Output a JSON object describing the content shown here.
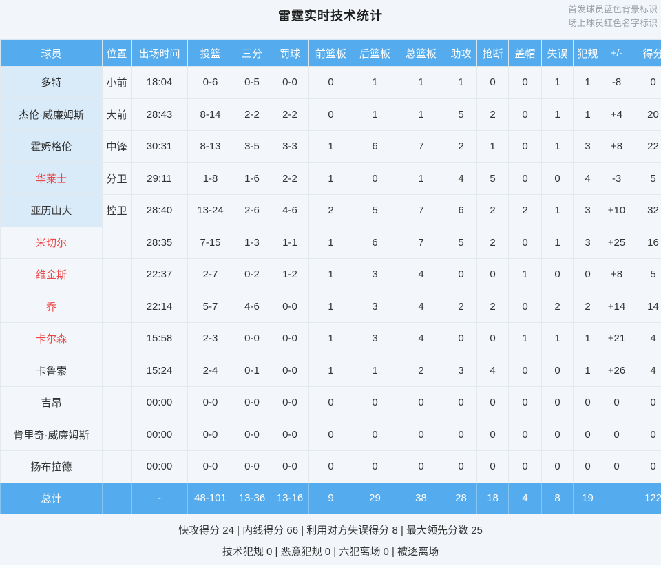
{
  "page": {
    "title": "雷霆实时技术统计",
    "legend_line1": "首发球员蓝色背景标识",
    "legend_line2": "场上球员红色名字标识"
  },
  "colors": {
    "accent_blue": "#54abed",
    "starter_bg": "#d9eaf8",
    "oncourt_red": "#ee4646"
  },
  "table": {
    "columns": [
      "球员",
      "位置",
      "出场时间",
      "投篮",
      "三分",
      "罚球",
      "前篮板",
      "后篮板",
      "总篮板",
      "助攻",
      "抢断",
      "盖帽",
      "失误",
      "犯规",
      "+/-",
      "得分"
    ],
    "rows": [
      {
        "name": "多特",
        "starter": true,
        "red": false,
        "cells": [
          "小前",
          "18:04",
          "0-6",
          "0-5",
          "0-0",
          "0",
          "1",
          "1",
          "1",
          "0",
          "0",
          "1",
          "1",
          "-8",
          "0"
        ]
      },
      {
        "name": "杰伦·威廉姆斯",
        "starter": true,
        "red": false,
        "cells": [
          "大前",
          "28:43",
          "8-14",
          "2-2",
          "2-2",
          "0",
          "1",
          "1",
          "5",
          "2",
          "0",
          "1",
          "1",
          "+4",
          "20"
        ]
      },
      {
        "name": "霍姆格伦",
        "starter": true,
        "red": false,
        "cells": [
          "中锋",
          "30:31",
          "8-13",
          "3-5",
          "3-3",
          "1",
          "6",
          "7",
          "2",
          "1",
          "0",
          "1",
          "3",
          "+8",
          "22"
        ]
      },
      {
        "name": "华莱士",
        "starter": true,
        "red": true,
        "cells": [
          "分卫",
          "29:11",
          "1-8",
          "1-6",
          "2-2",
          "1",
          "0",
          "1",
          "4",
          "5",
          "0",
          "0",
          "4",
          "-3",
          "5"
        ]
      },
      {
        "name": "亚历山大",
        "starter": true,
        "red": false,
        "cells": [
          "控卫",
          "28:40",
          "13-24",
          "2-6",
          "4-6",
          "2",
          "5",
          "7",
          "6",
          "2",
          "2",
          "1",
          "3",
          "+10",
          "32"
        ]
      },
      {
        "name": "米切尔",
        "starter": false,
        "red": true,
        "cells": [
          "",
          "28:35",
          "7-15",
          "1-3",
          "1-1",
          "1",
          "6",
          "7",
          "5",
          "2",
          "0",
          "1",
          "3",
          "+25",
          "16"
        ]
      },
      {
        "name": "维金斯",
        "starter": false,
        "red": true,
        "cells": [
          "",
          "22:37",
          "2-7",
          "0-2",
          "1-2",
          "1",
          "3",
          "4",
          "0",
          "0",
          "1",
          "0",
          "0",
          "+8",
          "5"
        ]
      },
      {
        "name": "乔",
        "starter": false,
        "red": true,
        "cells": [
          "",
          "22:14",
          "5-7",
          "4-6",
          "0-0",
          "1",
          "3",
          "4",
          "2",
          "2",
          "0",
          "2",
          "2",
          "+14",
          "14"
        ]
      },
      {
        "name": "卡尔森",
        "starter": false,
        "red": true,
        "cells": [
          "",
          "15:58",
          "2-3",
          "0-0",
          "0-0",
          "1",
          "3",
          "4",
          "0",
          "0",
          "1",
          "1",
          "1",
          "+21",
          "4"
        ]
      },
      {
        "name": "卡鲁索",
        "starter": false,
        "red": false,
        "cells": [
          "",
          "15:24",
          "2-4",
          "0-1",
          "0-0",
          "1",
          "1",
          "2",
          "3",
          "4",
          "0",
          "0",
          "1",
          "+26",
          "4"
        ]
      },
      {
        "name": "吉昂",
        "starter": false,
        "red": false,
        "cells": [
          "",
          "00:00",
          "0-0",
          "0-0",
          "0-0",
          "0",
          "0",
          "0",
          "0",
          "0",
          "0",
          "0",
          "0",
          "0",
          "0"
        ]
      },
      {
        "name": "肯里奇·威廉姆斯",
        "starter": false,
        "red": false,
        "cells": [
          "",
          "00:00",
          "0-0",
          "0-0",
          "0-0",
          "0",
          "0",
          "0",
          "0",
          "0",
          "0",
          "0",
          "0",
          "0",
          "0"
        ]
      },
      {
        "name": "扬布拉德",
        "starter": false,
        "red": false,
        "cells": [
          "",
          "00:00",
          "0-0",
          "0-0",
          "0-0",
          "0",
          "0",
          "0",
          "0",
          "0",
          "0",
          "0",
          "0",
          "0",
          "0"
        ]
      }
    ],
    "total": {
      "name": "总计",
      "cells": [
        "",
        "-",
        "48-101",
        "13-36",
        "13-16",
        "9",
        "29",
        "38",
        "28",
        "18",
        "4",
        "8",
        "19",
        "",
        "122"
      ]
    }
  },
  "footer": {
    "line1": "快攻得分 24 | 内线得分 66 | 利用对方失误得分 8 | 最大领先分数 25",
    "line2": "技术犯规 0 | 恶意犯规 0 | 六犯离场 0 | 被逐离场"
  }
}
